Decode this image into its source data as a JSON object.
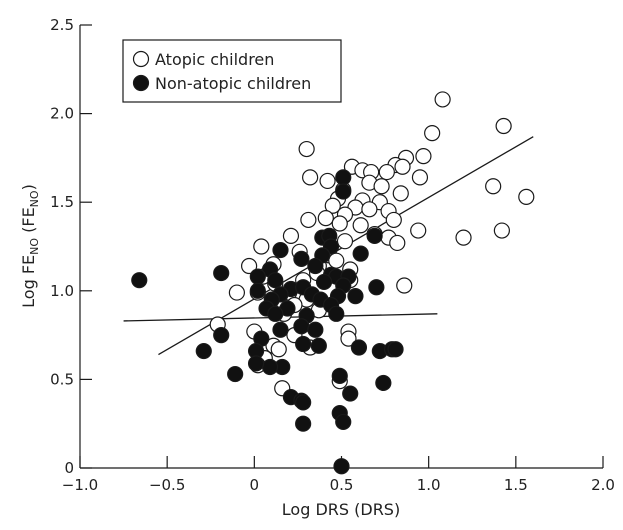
{
  "chart_data": {
    "type": "scatter",
    "xlabel": "Log DRS (DRS)",
    "ylabel_main": "Log FE",
    "ylabel_sub1": "NO",
    "ylabel_mid": " (FE",
    "ylabel_sub2": "NO",
    "ylabel_end": ")",
    "xlim": [
      -1.0,
      2.0
    ],
    "ylim": [
      0,
      2.5
    ],
    "xticks": [
      -1.0,
      -0.5,
      0,
      0.5,
      1.0,
      1.5,
      2.0
    ],
    "xtick_labels": [
      "−1.0",
      "−0.5",
      "0",
      "0.5",
      "1.0",
      "1.5",
      "2.0"
    ],
    "yticks": [
      0,
      0.5,
      1.0,
      1.5,
      2.0,
      2.5
    ],
    "ytick_labels": [
      "0",
      "0.5",
      "1.0",
      "1.5",
      "2.0",
      "2.5"
    ],
    "legend_position": "top-left",
    "series": [
      {
        "name": "Atopic children",
        "marker": "open-circle",
        "points": [
          [
            1.08,
            2.08
          ],
          [
            1.43,
            1.93
          ],
          [
            1.02,
            1.89
          ],
          [
            0.3,
            1.8
          ],
          [
            0.97,
            1.76
          ],
          [
            0.87,
            1.75
          ],
          [
            0.56,
            1.7
          ],
          [
            0.81,
            1.71
          ],
          [
            0.85,
            1.7
          ],
          [
            0.62,
            1.68
          ],
          [
            0.67,
            1.67
          ],
          [
            0.76,
            1.67
          ],
          [
            0.32,
            1.64
          ],
          [
            0.95,
            1.64
          ],
          [
            0.42,
            1.62
          ],
          [
            0.66,
            1.61
          ],
          [
            0.73,
            1.59
          ],
          [
            0.51,
            1.57
          ],
          [
            1.37,
            1.59
          ],
          [
            1.56,
            1.53
          ],
          [
            0.84,
            1.55
          ],
          [
            0.48,
            1.52
          ],
          [
            0.62,
            1.51
          ],
          [
            0.72,
            1.5
          ],
          [
            0.45,
            1.48
          ],
          [
            0.58,
            1.47
          ],
          [
            0.66,
            1.46
          ],
          [
            0.77,
            1.45
          ],
          [
            0.52,
            1.43
          ],
          [
            0.41,
            1.41
          ],
          [
            0.31,
            1.4
          ],
          [
            0.8,
            1.4
          ],
          [
            0.49,
            1.38
          ],
          [
            0.61,
            1.37
          ],
          [
            0.94,
            1.34
          ],
          [
            1.42,
            1.34
          ],
          [
            0.69,
            1.32
          ],
          [
            0.21,
            1.31
          ],
          [
            0.77,
            1.3
          ],
          [
            1.2,
            1.3
          ],
          [
            0.52,
            1.28
          ],
          [
            0.82,
            1.27
          ],
          [
            0.04,
            1.25
          ],
          [
            0.26,
            1.22
          ],
          [
            0.43,
            1.2
          ],
          [
            0.47,
            1.17
          ],
          [
            0.11,
            1.15
          ],
          [
            0.37,
            1.14
          ],
          [
            -0.03,
            1.14
          ],
          [
            0.55,
            1.12
          ],
          [
            0.36,
            1.1
          ],
          [
            0.05,
            1.08
          ],
          [
            0.28,
            1.06
          ],
          [
            0.55,
            1.06
          ],
          [
            0.12,
            1.04
          ],
          [
            0.86,
            1.03
          ],
          [
            0.02,
            0.99
          ],
          [
            0.2,
            0.99
          ],
          [
            -0.1,
            0.99
          ],
          [
            0.3,
            0.95
          ],
          [
            0.14,
            0.95
          ],
          [
            0.23,
            0.92
          ],
          [
            0.09,
            0.9
          ],
          [
            0.37,
            0.89
          ],
          [
            0.17,
            0.87
          ],
          [
            -0.21,
            0.81
          ],
          [
            0.0,
            0.77
          ],
          [
            0.54,
            0.77
          ],
          [
            0.23,
            0.75
          ],
          [
            0.54,
            0.73
          ],
          [
            0.11,
            0.69
          ],
          [
            0.32,
            0.68
          ],
          [
            0.14,
            0.67
          ],
          [
            0.06,
            0.62
          ],
          [
            0.02,
            0.58
          ],
          [
            0.49,
            0.49
          ],
          [
            0.16,
            0.45
          ]
        ]
      },
      {
        "name": "Non-atopic children",
        "marker": "filled-circle",
        "points": [
          [
            -0.66,
            1.06
          ],
          [
            -0.19,
            1.1
          ],
          [
            0.51,
            1.64
          ],
          [
            0.51,
            1.56
          ],
          [
            0.39,
            1.3
          ],
          [
            0.43,
            1.31
          ],
          [
            0.44,
            1.25
          ],
          [
            0.39,
            1.2
          ],
          [
            0.15,
            1.23
          ],
          [
            0.27,
            1.18
          ],
          [
            0.61,
            1.21
          ],
          [
            0.69,
            1.31
          ],
          [
            0.35,
            1.14
          ],
          [
            0.09,
            1.12
          ],
          [
            0.44,
            1.09
          ],
          [
            0.02,
            1.08
          ],
          [
            0.47,
            1.08
          ],
          [
            0.54,
            1.08
          ],
          [
            0.12,
            1.06
          ],
          [
            0.4,
            1.05
          ],
          [
            0.02,
            1.0
          ],
          [
            0.21,
            1.01
          ],
          [
            0.28,
            1.02
          ],
          [
            0.51,
            1.03
          ],
          [
            0.7,
            1.02
          ],
          [
            0.15,
            0.98
          ],
          [
            0.33,
            0.98
          ],
          [
            0.48,
            0.97
          ],
          [
            0.58,
            0.97
          ],
          [
            0.1,
            0.95
          ],
          [
            0.38,
            0.95
          ],
          [
            0.44,
            0.92
          ],
          [
            0.07,
            0.9
          ],
          [
            0.19,
            0.9
          ],
          [
            0.12,
            0.87
          ],
          [
            0.3,
            0.86
          ],
          [
            0.47,
            0.87
          ],
          [
            0.27,
            0.8
          ],
          [
            0.15,
            0.78
          ],
          [
            0.35,
            0.78
          ],
          [
            -0.19,
            0.75
          ],
          [
            0.28,
            0.7
          ],
          [
            0.04,
            0.73
          ],
          [
            0.37,
            0.69
          ],
          [
            0.6,
            0.68
          ],
          [
            0.72,
            0.66
          ],
          [
            0.79,
            0.67
          ],
          [
            0.01,
            0.66
          ],
          [
            -0.29,
            0.66
          ],
          [
            0.81,
            0.67
          ],
          [
            0.16,
            0.57
          ],
          [
            0.09,
            0.57
          ],
          [
            0.01,
            0.59
          ],
          [
            -0.11,
            0.53
          ],
          [
            0.49,
            0.52
          ],
          [
            0.74,
            0.48
          ],
          [
            0.55,
            0.42
          ],
          [
            0.21,
            0.4
          ],
          [
            0.27,
            0.38
          ],
          [
            0.28,
            0.37
          ],
          [
            0.49,
            0.31
          ],
          [
            0.51,
            0.26
          ],
          [
            0.28,
            0.25
          ],
          [
            0.5,
            0.01
          ]
        ]
      }
    ],
    "regression_lines": [
      {
        "series": "Atopic children",
        "x": [
          -0.55,
          1.6
        ],
        "y": [
          0.64,
          1.87
        ]
      },
      {
        "series": "Non-atopic children",
        "x": [
          -0.75,
          1.05
        ],
        "y": [
          0.83,
          0.87
        ]
      }
    ]
  }
}
